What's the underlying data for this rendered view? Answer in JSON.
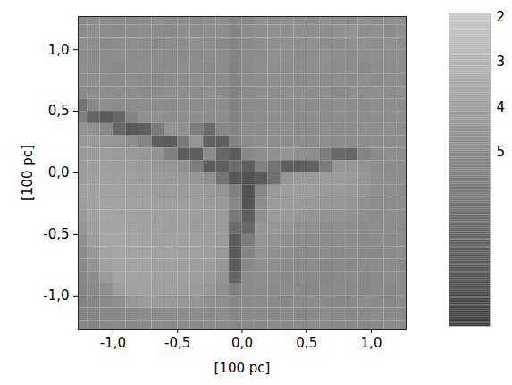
{
  "chart_data": {
    "type": "heatmap",
    "xlabel": "[100 pc]",
    "ylabel": "[100 pc]",
    "xlim": [
      -1.27,
      1.27
    ],
    "ylim": [
      -1.27,
      1.27
    ],
    "xticks": [
      {
        "value": -1.0,
        "label": "-1,0"
      },
      {
        "value": -0.5,
        "label": "-0,5"
      },
      {
        "value": 0,
        "label": "0,0"
      },
      {
        "value": 0.5,
        "label": "0,5"
      },
      {
        "value": 1.0,
        "label": "1,0"
      }
    ],
    "yticks": [
      {
        "value": -1.0,
        "label": "-1,0"
      },
      {
        "value": -0.5,
        "label": "-0,5"
      },
      {
        "value": 0,
        "label": "0,0"
      },
      {
        "value": 0.5,
        "label": "0,5"
      },
      {
        "value": 1.0,
        "label": "1,0"
      }
    ],
    "x": [
      -1.25,
      -1.15,
      -1.05,
      -0.95,
      -0.85,
      -0.75,
      -0.65,
      -0.55,
      -0.45,
      -0.35,
      -0.25,
      -0.15,
      -0.05,
      0.05,
      0.15,
      0.25,
      0.35,
      0.45,
      0.55,
      0.65,
      0.75,
      0.85,
      0.95,
      1.05,
      1.15,
      1.25
    ],
    "y": [
      1.25,
      1.15,
      1.05,
      0.95,
      0.85,
      0.75,
      0.65,
      0.55,
      0.45,
      0.35,
      0.25,
      0.15,
      0.05,
      -0.05,
      -0.15,
      -0.25,
      -0.35,
      -0.45,
      -0.55,
      -0.65,
      -0.75,
      -0.85,
      -0.95,
      -1.05,
      -1.15,
      -1.25
    ],
    "cells": [
      [
        4.9,
        4.8,
        4.7,
        4.8,
        4.9,
        4.8,
        4.7,
        4.8,
        4.8,
        4.9,
        4.8,
        4.7,
        5.1,
        4.9,
        4.6,
        4.7,
        4.6,
        4.7,
        4.8,
        4.6,
        4.7,
        4.8,
        4.6,
        4.7,
        4.6,
        4.7
      ],
      [
        4.8,
        4.7,
        4.8,
        4.9,
        4.8,
        4.7,
        4.8,
        4.9,
        4.7,
        4.8,
        4.8,
        4.8,
        5.2,
        4.8,
        4.7,
        4.6,
        4.7,
        4.6,
        4.7,
        4.7,
        4.6,
        4.5,
        4.7,
        4.6,
        4.8,
        4.6
      ],
      [
        4.7,
        4.8,
        4.9,
        4.8,
        4.7,
        4.8,
        4.9,
        4.8,
        4.8,
        4.7,
        4.8,
        4.9,
        5.2,
        4.9,
        4.7,
        4.7,
        4.6,
        4.7,
        4.6,
        4.8,
        4.7,
        4.6,
        4.6,
        4.7,
        4.6,
        4.7
      ],
      [
        4.8,
        4.9,
        4.8,
        4.7,
        4.8,
        4.8,
        4.7,
        4.8,
        4.9,
        4.8,
        4.7,
        4.8,
        5.2,
        4.8,
        4.8,
        4.6,
        4.7,
        4.8,
        4.7,
        4.6,
        4.7,
        4.8,
        4.7,
        4.6,
        4.7,
        4.8
      ],
      [
        4.7,
        4.8,
        4.8,
        4.9,
        4.8,
        4.7,
        4.8,
        4.8,
        4.7,
        4.8,
        4.9,
        4.8,
        5.3,
        4.9,
        4.7,
        4.7,
        4.8,
        4.7,
        4.6,
        4.7,
        4.8,
        4.7,
        4.9,
        4.7,
        4.8,
        4.7
      ],
      [
        4.8,
        4.7,
        4.8,
        4.8,
        4.7,
        4.8,
        4.9,
        4.8,
        4.8,
        4.7,
        4.8,
        4.8,
        5.2,
        4.8,
        4.8,
        4.7,
        4.7,
        4.8,
        4.7,
        4.8,
        4.7,
        4.8,
        4.7,
        4.8,
        4.7,
        4.8
      ],
      [
        4.9,
        4.8,
        4.7,
        4.8,
        4.8,
        4.9,
        4.8,
        4.7,
        4.8,
        4.8,
        4.7,
        4.9,
        5.3,
        4.9,
        4.7,
        4.8,
        4.7,
        4.7,
        4.8,
        4.7,
        4.9,
        4.7,
        4.8,
        4.7,
        4.8,
        4.7
      ],
      [
        6.0,
        5.0,
        4.7,
        4.8,
        4.8,
        4.7,
        4.8,
        4.8,
        4.7,
        4.8,
        4.8,
        4.8,
        5.3,
        4.8,
        4.8,
        4.7,
        4.8,
        4.7,
        4.8,
        4.8,
        4.7,
        4.8,
        4.8,
        4.7,
        4.8,
        4.8
      ],
      [
        5.4,
        6.8,
        7.2,
        6.6,
        5.2,
        4.6,
        4.6,
        4.7,
        4.7,
        4.7,
        4.8,
        4.8,
        5.3,
        4.9,
        4.8,
        4.7,
        4.8,
        4.8,
        4.7,
        4.8,
        4.7,
        4.8,
        4.8,
        4.7,
        4.8,
        4.7
      ],
      [
        4.5,
        4.6,
        5.0,
        6.6,
        7.3,
        7.0,
        5.6,
        4.5,
        4.6,
        5.6,
        6.4,
        5.0,
        5.2,
        4.8,
        4.8,
        4.7,
        4.7,
        4.8,
        4.8,
        4.7,
        4.8,
        4.8,
        4.7,
        4.8,
        4.7,
        4.8
      ],
      [
        4.3,
        4.2,
        4.3,
        4.4,
        4.7,
        5.2,
        7.0,
        7.2,
        5.8,
        4.4,
        6.8,
        7.0,
        5.3,
        4.8,
        4.7,
        4.7,
        4.8,
        4.7,
        4.8,
        4.7,
        4.8,
        4.8,
        4.8,
        4.7,
        4.8,
        4.7
      ],
      [
        4.2,
        4.1,
        4.0,
        4.1,
        4.2,
        4.3,
        4.5,
        5.4,
        7.1,
        7.0,
        4.8,
        6.6,
        7.2,
        5.0,
        4.7,
        4.6,
        4.5,
        4.6,
        4.7,
        5.6,
        6.5,
        6.6,
        5.2,
        4.8,
        4.7,
        4.8
      ],
      [
        4.1,
        4.0,
        3.9,
        4.0,
        4.0,
        4.1,
        4.2,
        4.3,
        4.6,
        5.5,
        7.1,
        7.0,
        6.4,
        7.0,
        5.4,
        6.0,
        7.0,
        7.0,
        6.8,
        5.6,
        4.4,
        4.3,
        4.5,
        4.7,
        4.8,
        4.7
      ],
      [
        4.0,
        3.9,
        3.8,
        3.9,
        3.9,
        4.0,
        4.0,
        4.1,
        4.2,
        4.3,
        4.6,
        6.0,
        7.4,
        7.6,
        7.2,
        6.2,
        4.3,
        4.1,
        4.1,
        4.0,
        4.0,
        4.1,
        4.3,
        4.6,
        4.7,
        4.8
      ],
      [
        3.9,
        3.8,
        3.8,
        3.8,
        3.9,
        3.9,
        4.0,
        4.0,
        4.1,
        4.1,
        4.2,
        4.4,
        5.4,
        7.6,
        5.0,
        4.2,
        4.0,
        4.0,
        4.0,
        4.1,
        4.1,
        4.2,
        4.4,
        4.6,
        4.7,
        4.8
      ],
      [
        4.0,
        3.8,
        3.7,
        3.7,
        3.8,
        3.8,
        3.9,
        3.9,
        4.0,
        4.0,
        4.1,
        4.2,
        5.0,
        7.5,
        4.8,
        4.1,
        4.0,
        4.1,
        4.2,
        4.3,
        4.3,
        4.4,
        4.6,
        4.7,
        4.8,
        4.7
      ],
      [
        4.2,
        3.8,
        3.6,
        3.7,
        3.7,
        3.8,
        3.8,
        3.9,
        3.9,
        4.0,
        4.0,
        4.1,
        5.8,
        7.0,
        4.6,
        4.1,
        4.2,
        4.3,
        4.4,
        4.5,
        4.5,
        4.6,
        4.7,
        4.8,
        4.7,
        4.8
      ],
      [
        4.4,
        3.9,
        3.6,
        3.6,
        3.7,
        3.8,
        3.8,
        3.9,
        3.9,
        4.0,
        4.0,
        4.1,
        6.4,
        6.6,
        4.4,
        4.3,
        4.4,
        4.5,
        4.6,
        4.7,
        4.6,
        4.7,
        4.8,
        4.7,
        4.8,
        4.9
      ],
      [
        4.6,
        4.0,
        3.6,
        3.6,
        3.7,
        3.7,
        3.8,
        3.8,
        3.9,
        3.9,
        4.0,
        4.1,
        7.2,
        5.6,
        4.4,
        4.5,
        4.6,
        4.7,
        4.8,
        4.8,
        4.7,
        4.8,
        4.9,
        4.8,
        4.9,
        4.8
      ],
      [
        4.8,
        4.2,
        3.7,
        3.6,
        3.7,
        3.7,
        3.8,
        3.8,
        3.9,
        3.9,
        4.0,
        4.2,
        7.3,
        5.2,
        4.5,
        4.6,
        4.7,
        4.8,
        4.9,
        4.8,
        4.9,
        4.8,
        4.9,
        5.0,
        4.9,
        4.8
      ],
      [
        4.9,
        4.5,
        3.8,
        3.6,
        3.7,
        3.7,
        3.8,
        3.8,
        3.9,
        4.0,
        4.0,
        4.3,
        7.2,
        5.0,
        4.6,
        4.7,
        4.8,
        4.9,
        4.8,
        5.0,
        4.9,
        5.0,
        4.9,
        4.8,
        4.9,
        5.0
      ],
      [
        5.0,
        4.8,
        4.1,
        3.7,
        3.7,
        3.8,
        3.8,
        3.9,
        3.9,
        4.0,
        4.1,
        4.5,
        6.8,
        4.9,
        4.7,
        4.8,
        4.9,
        4.8,
        4.9,
        5.0,
        4.9,
        4.8,
        5.0,
        4.9,
        4.8,
        4.9
      ],
      [
        5.1,
        5.0,
        4.6,
        4.0,
        3.8,
        3.8,
        3.9,
        3.9,
        4.0,
        4.1,
        4.3,
        4.6,
        5.4,
        4.9,
        4.8,
        4.9,
        4.8,
        4.9,
        5.0,
        4.9,
        4.8,
        4.9,
        5.0,
        4.9,
        5.0,
        4.9
      ],
      [
        5.2,
        5.1,
        4.9,
        4.6,
        4.3,
        4.1,
        4.1,
        4.2,
        4.3,
        4.4,
        4.6,
        4.7,
        5.0,
        4.9,
        4.8,
        4.9,
        5.0,
        4.9,
        4.8,
        4.9,
        5.0,
        4.9,
        4.8,
        4.9,
        5.0,
        4.9
      ],
      [
        5.2,
        5.1,
        5.0,
        5.0,
        4.9,
        4.8,
        4.8,
        4.7,
        4.8,
        4.8,
        4.9,
        4.8,
        5.1,
        4.9,
        4.9,
        5.0,
        4.9,
        5.0,
        4.9,
        4.8,
        4.9,
        5.0,
        4.9,
        4.8,
        4.9,
        5.0
      ],
      [
        5.1,
        5.2,
        5.0,
        4.9,
        5.0,
        4.9,
        4.8,
        4.9,
        4.8,
        4.9,
        4.8,
        4.9,
        5.1,
        4.9,
        5.0,
        4.9,
        5.0,
        4.9,
        4.8,
        4.9,
        5.0,
        4.9,
        5.0,
        4.9,
        4.8,
        4.9
      ]
    ],
    "colorbar": {
      "range": [
        1.9,
        8.9
      ],
      "ticks": [
        2,
        3,
        4,
        5
      ]
    }
  }
}
